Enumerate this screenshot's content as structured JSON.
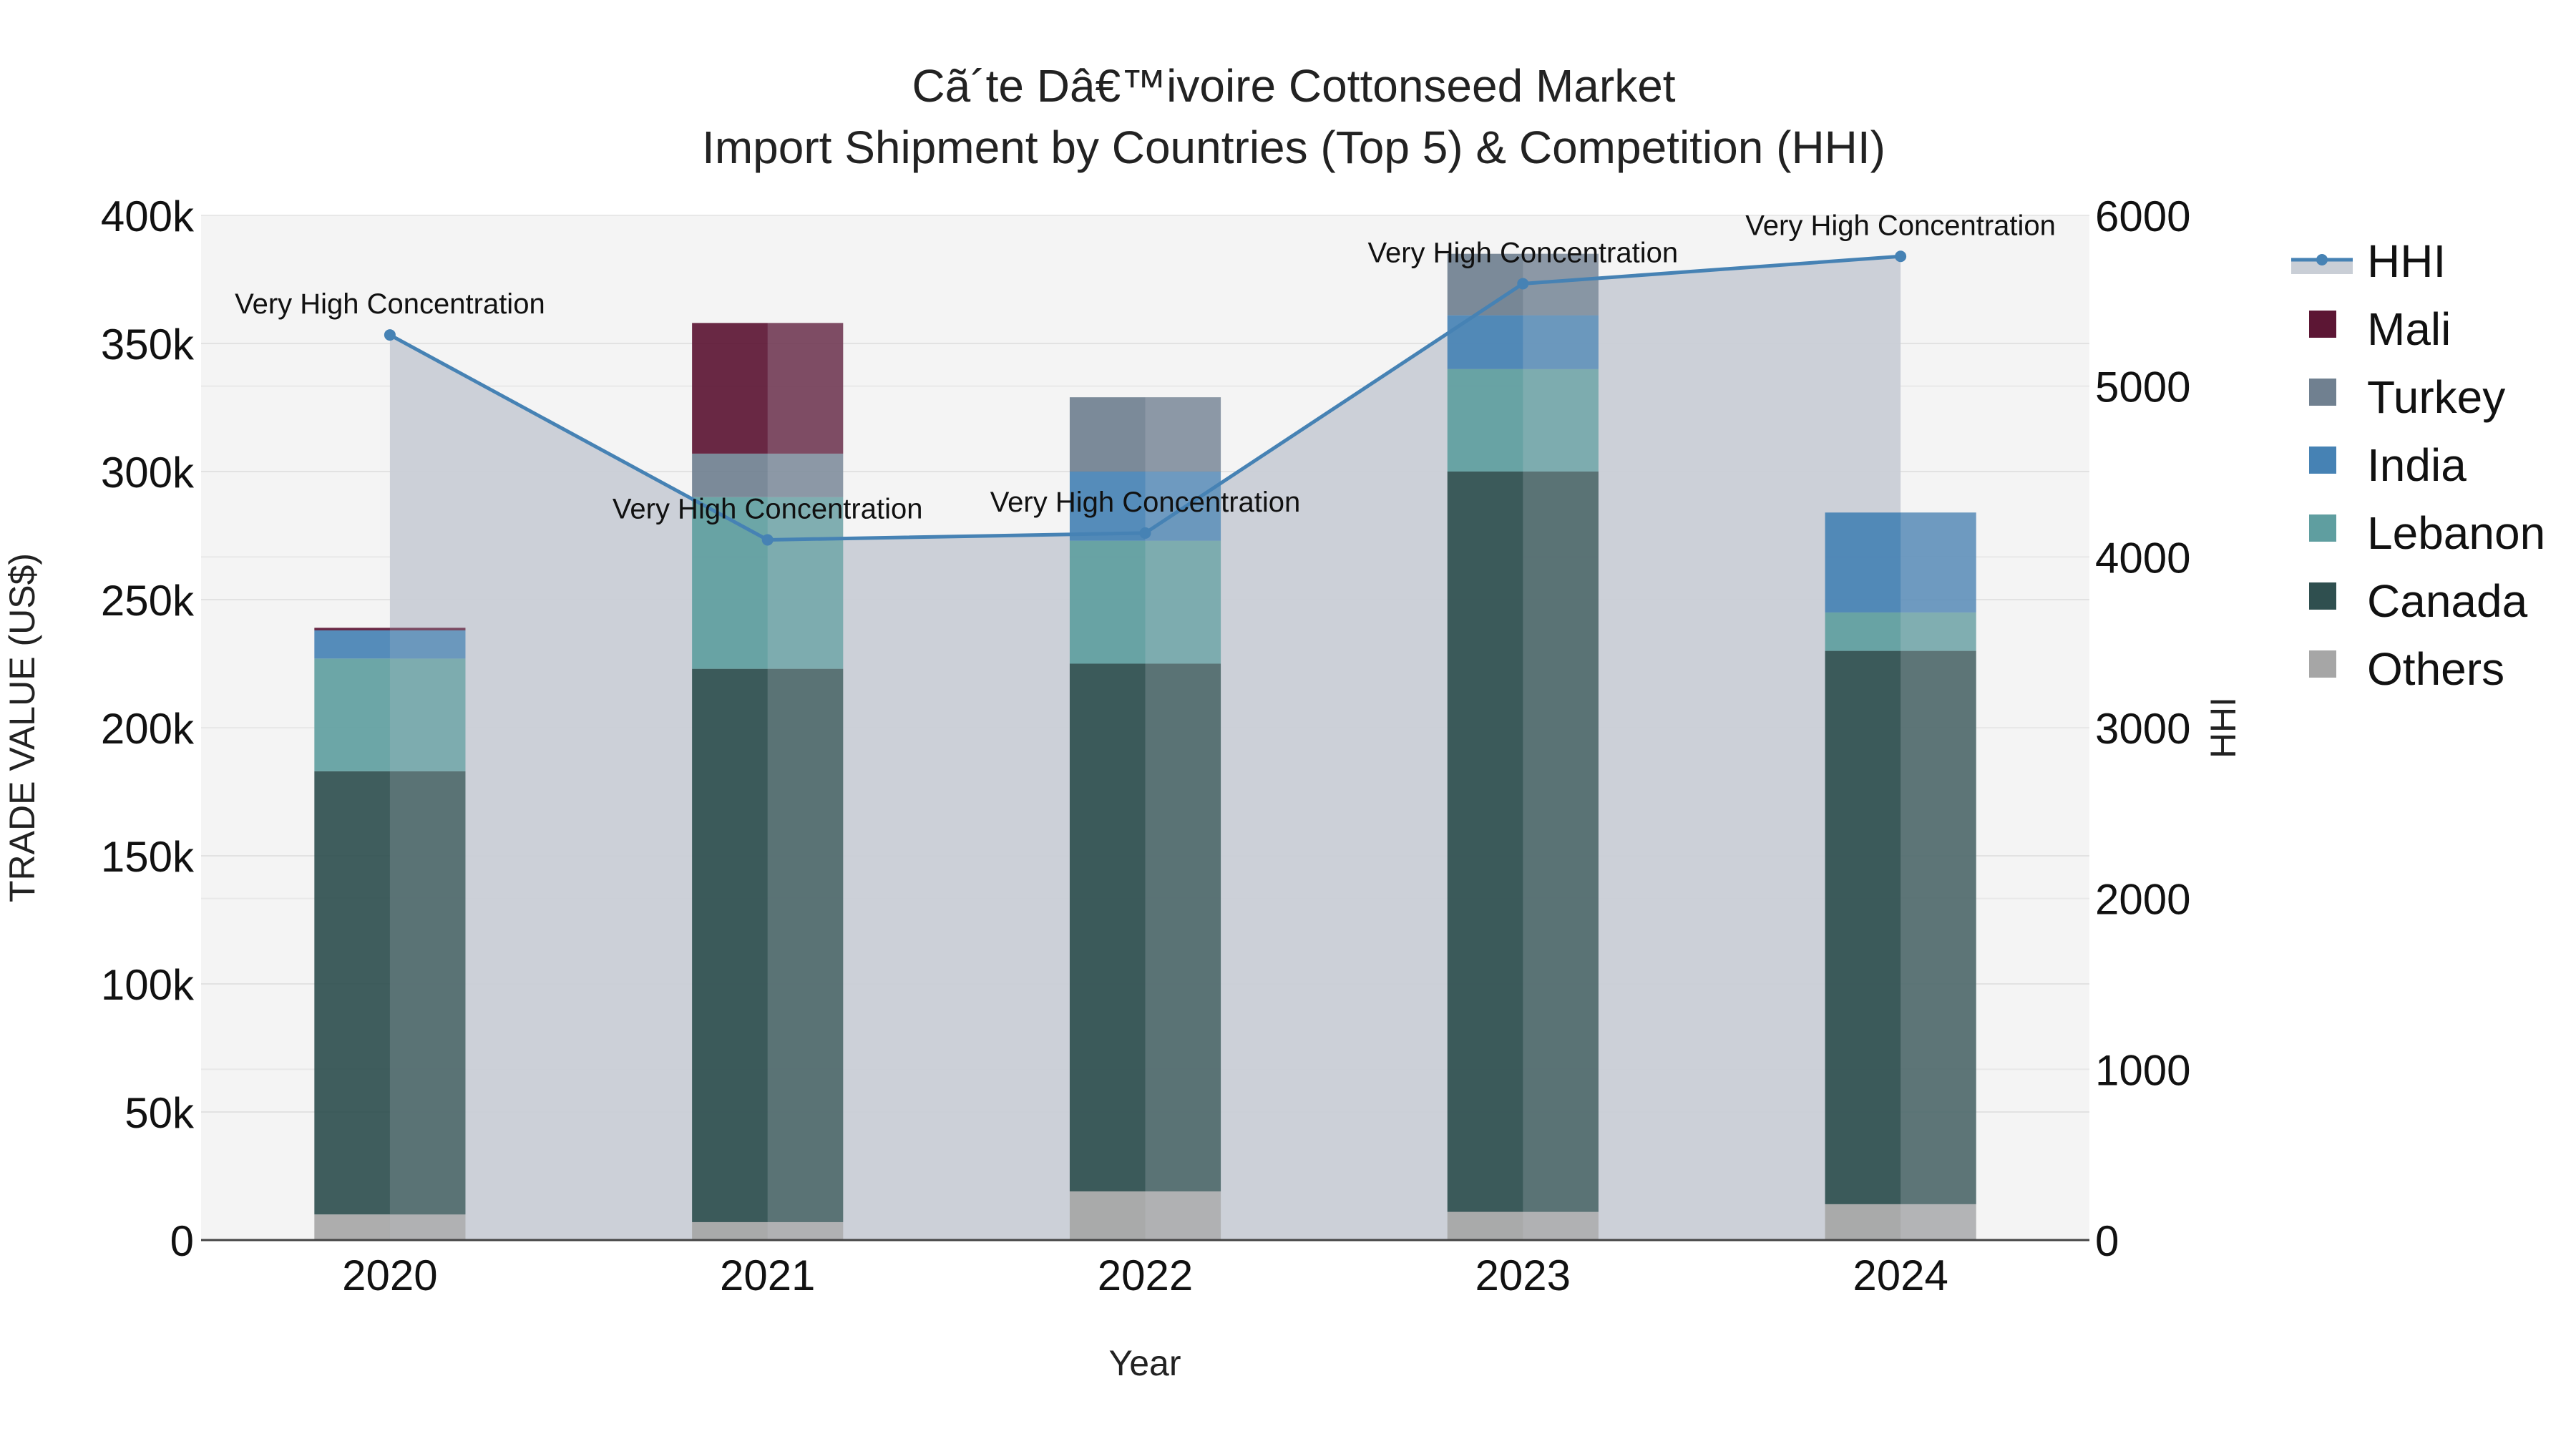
{
  "chart_data": {
    "type": "bar",
    "stacked": true,
    "title_line1": "Cã´te Dâ€™ivoire Cottonseed Market",
    "title_line2": "Import Shipment by Countries (Top 5) & Competition (HHI)",
    "xlabel": "Year",
    "ylabel": "TRADE VALUE (US$)",
    "y2label": "HHI",
    "categories": [
      "2020",
      "2021",
      "2022",
      "2023",
      "2024"
    ],
    "ylim": [
      0,
      400000
    ],
    "yticks": [
      0,
      50000,
      100000,
      150000,
      200000,
      250000,
      300000,
      350000,
      400000
    ],
    "ytick_labels": [
      "0",
      "50k",
      "100k",
      "150k",
      "200k",
      "250k",
      "300k",
      "350k",
      "400k"
    ],
    "y2lim": [
      0,
      6000
    ],
    "y2ticks": [
      0,
      1000,
      2000,
      3000,
      4000,
      5000,
      6000
    ],
    "y2tick_labels": [
      "0",
      "1000",
      "2000",
      "3000",
      "4000",
      "5000",
      "6000"
    ],
    "series": [
      {
        "name": "Others",
        "color": "#a6a6a6",
        "values": [
          10000,
          7000,
          19000,
          11000,
          14000
        ]
      },
      {
        "name": "Canada",
        "color": "#2f4f4f",
        "values": [
          173000,
          216000,
          206000,
          289000,
          216000
        ]
      },
      {
        "name": "Lebanon",
        "color": "#5f9ea0",
        "values": [
          44000,
          67000,
          48000,
          40000,
          15000
        ]
      },
      {
        "name": "India",
        "color": "#4682b4",
        "values": [
          11000,
          0,
          27000,
          21000,
          39000
        ]
      },
      {
        "name": "Turkey",
        "color": "#708090",
        "values": [
          0,
          17000,
          29000,
          24000,
          0
        ]
      },
      {
        "name": "Mali",
        "color": "#5c1634",
        "values": [
          1000,
          51000,
          0,
          0,
          0
        ]
      }
    ],
    "legend_order": [
      "HHI",
      "Mali",
      "Turkey",
      "India",
      "Lebanon",
      "Canada",
      "Others"
    ],
    "hhi": {
      "name": "HHI",
      "color": "#4682b4",
      "fill_color": "#c9ced6",
      "values": [
        5300,
        4100,
        4140,
        5600,
        5760
      ],
      "labels": [
        "Very High Concentration",
        "Very High Concentration",
        "Very High Concentration",
        "Very High Concentration",
        "Very High Concentration"
      ]
    },
    "legend_position": "top-right"
  }
}
